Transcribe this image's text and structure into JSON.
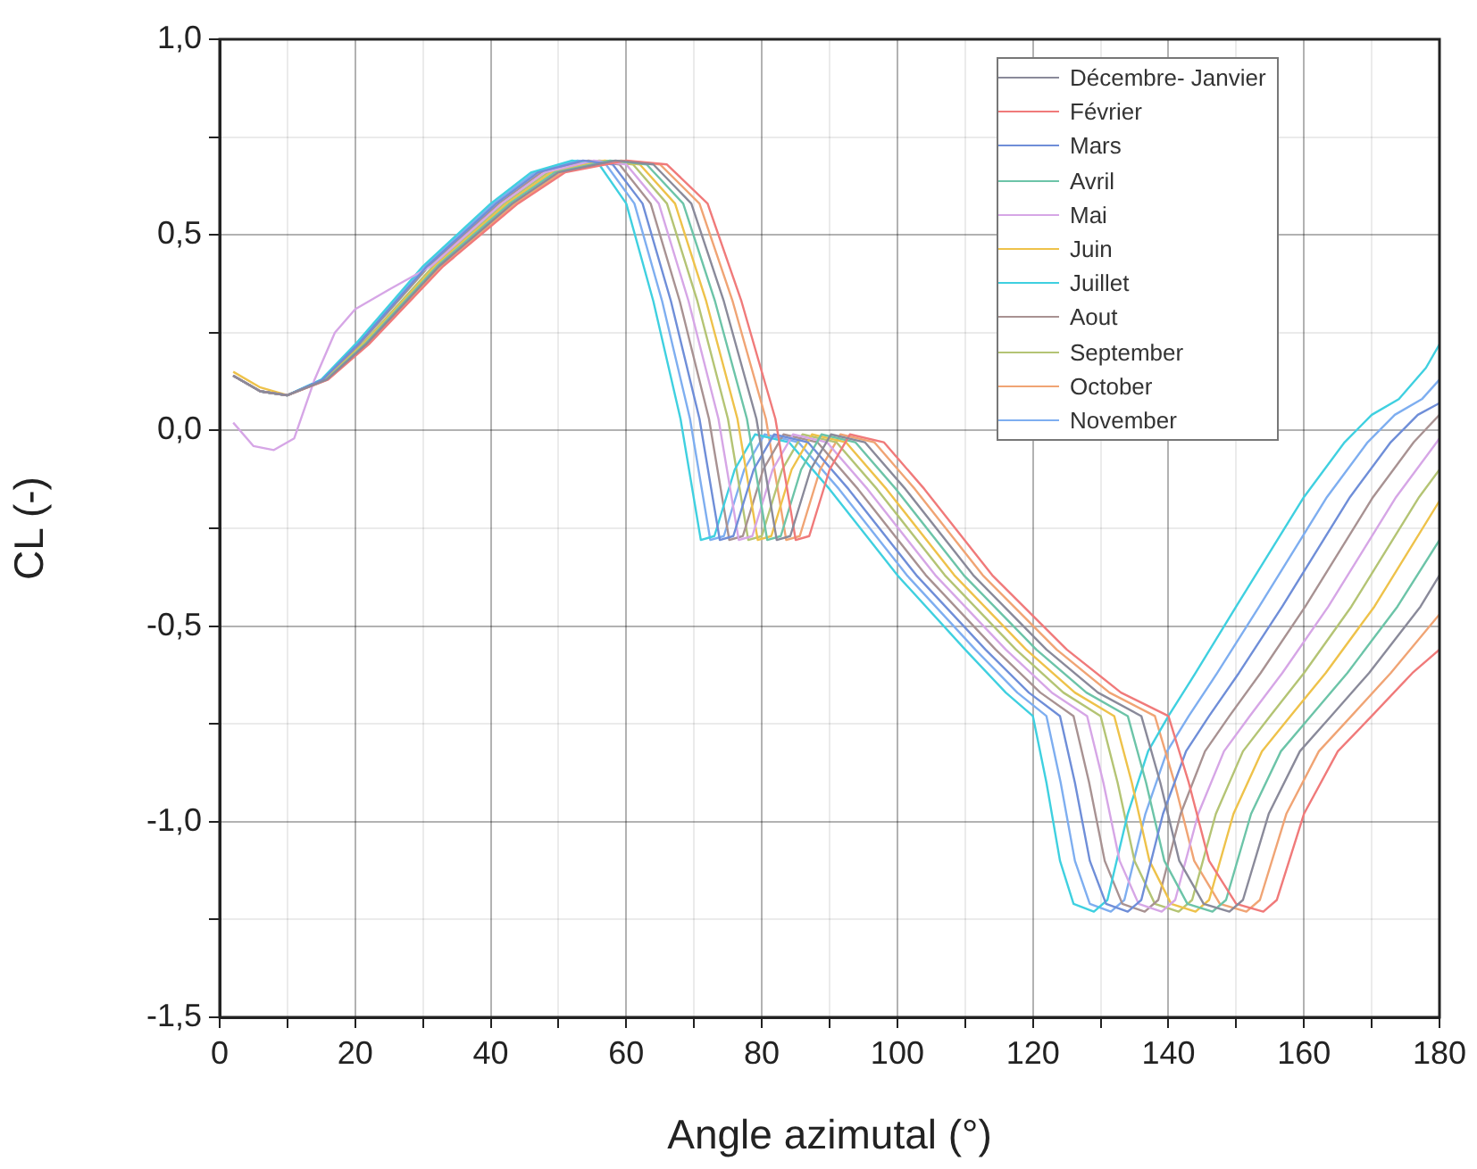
{
  "chart_data": {
    "type": "line",
    "xlabel": "Angle azimutal (°)",
    "ylabel": "CL (-)",
    "xlim": [
      0,
      180
    ],
    "xticks": [
      0,
      {
        "value": 10,
        "label": null
      },
      20,
      {
        "value": 30,
        "label": null
      },
      40,
      {
        "value": 50,
        "label": null
      },
      60,
      {
        "value": 70,
        "label": null
      },
      80,
      {
        "value": 90,
        "label": null
      },
      100,
      {
        "value": 110,
        "label": null
      },
      120,
      {
        "value": 130,
        "label": null
      },
      140,
      {
        "value": 150,
        "label": null
      },
      160,
      {
        "value": 170,
        "label": null
      },
      180
    ],
    "ylim": [
      -1.5,
      1
    ],
    "yticks": [
      {
        "value": -1.5,
        "label": "-1,5"
      },
      {
        "value": -1.25,
        "label": null
      },
      {
        "value": -1,
        "label": "-1,0"
      },
      {
        "value": -0.75,
        "label": null
      },
      {
        "value": -0.5,
        "label": "-0,5"
      },
      {
        "value": -0.25,
        "label": null
      },
      {
        "value": 0,
        "label": "0,0"
      },
      {
        "value": 0.25,
        "label": null
      },
      {
        "value": 0.5,
        "label": "0,5"
      },
      {
        "value": 0.75,
        "label": null
      },
      {
        "value": 1,
        "label": "1,0"
      }
    ],
    "grid": true,
    "legend": "top right",
    "marker": "none",
    "line_style": "solid",
    "series": [
      {
        "name": "Décembre- Janvier",
        "color": "#8a8a9a",
        "x": [
          2,
          6,
          10,
          15.8,
          21.6,
          32.4,
          43.2,
          50,
          58.4,
          64,
          69.6,
          74.4,
          79.2,
          82.2,
          84.2,
          87.2,
          90.2,
          95.2,
          101.2,
          111.2,
          122,
          129.6,
          136,
          138.8,
          141.6,
          145.2,
          149,
          151,
          154.8,
          159.4,
          164,
          169.6,
          177.2,
          180
        ],
        "values": [
          0.14,
          0.1,
          0.09,
          0.13,
          0.22,
          0.42,
          0.58,
          0.66,
          0.69,
          0.68,
          0.58,
          0.33,
          0.03,
          -0.28,
          -0.27,
          -0.1,
          -0.01,
          -0.03,
          -0.15,
          -0.37,
          -0.56,
          -0.67,
          -0.73,
          -0.9,
          -1.1,
          -1.21,
          -1.23,
          -1.2,
          -0.98,
          -0.82,
          -0.73,
          -0.62,
          -0.45,
          -0.37
        ]
      },
      {
        "name": "Février",
        "color": "#f07a7a",
        "x": [
          2,
          6,
          10,
          16,
          22,
          33,
          44,
          51,
          60,
          66,
          72,
          77,
          82,
          85,
          87,
          90,
          93,
          98,
          104,
          114,
          125,
          133,
          140,
          143,
          146,
          150,
          154,
          156,
          160,
          165,
          170,
          176,
          180
        ],
        "values": [
          0.14,
          0.1,
          0.09,
          0.13,
          0.22,
          0.42,
          0.58,
          0.66,
          0.69,
          0.68,
          0.58,
          0.33,
          0.03,
          -0.28,
          -0.27,
          -0.1,
          -0.01,
          -0.03,
          -0.15,
          -0.37,
          -0.56,
          -0.67,
          -0.73,
          -0.9,
          -1.1,
          -1.21,
          -1.23,
          -1.2,
          -0.98,
          -0.82,
          -0.73,
          -0.62,
          -0.56
        ]
      },
      {
        "name": "Mars",
        "color": "#6f8ed8",
        "x": [
          2,
          6,
          10,
          15.2,
          20.4,
          30.6,
          40.8,
          47,
          53.6,
          58,
          62.4,
          66.6,
          70.8,
          73.8,
          75.8,
          78.8,
          81.8,
          86.8,
          92.8,
          102.8,
          113,
          119.4,
          124,
          126.2,
          128.4,
          130.8,
          134,
          136,
          139.2,
          142.6,
          146,
          150.4,
          156.8,
          166.8,
          172.8,
          176.8,
          180
        ],
        "values": [
          0.14,
          0.1,
          0.09,
          0.13,
          0.22,
          0.42,
          0.58,
          0.66,
          0.69,
          0.68,
          0.58,
          0.33,
          0.03,
          -0.28,
          -0.27,
          -0.1,
          -0.01,
          -0.03,
          -0.15,
          -0.37,
          -0.56,
          -0.67,
          -0.73,
          -0.9,
          -1.1,
          -1.21,
          -1.23,
          -1.2,
          -0.98,
          -0.82,
          -0.73,
          -0.62,
          -0.45,
          -0.17,
          -0.03,
          0.04,
          0.07
        ]
      },
      {
        "name": "Avril",
        "color": "#6cc4a8",
        "x": [
          2,
          6,
          10,
          15.7,
          21.4,
          32.1,
          42.8,
          49.5,
          57.6,
          63,
          68.4,
          73.1,
          77.8,
          80.8,
          82.8,
          85.8,
          88.8,
          93.8,
          99.8,
          109.8,
          120.5,
          127.9,
          134,
          136.7,
          139.4,
          142.8,
          146.5,
          148.5,
          152.2,
          156.6,
          161,
          166.4,
          173.8,
          180
        ],
        "values": [
          0.14,
          0.1,
          0.09,
          0.13,
          0.22,
          0.42,
          0.58,
          0.66,
          0.69,
          0.68,
          0.58,
          0.33,
          0.03,
          -0.28,
          -0.27,
          -0.1,
          -0.01,
          -0.03,
          -0.15,
          -0.37,
          -0.56,
          -0.67,
          -0.73,
          -0.9,
          -1.1,
          -1.21,
          -1.23,
          -1.2,
          -0.98,
          -0.82,
          -0.73,
          -0.62,
          -0.45,
          -0.28
        ]
      },
      {
        "name": "Mai",
        "color": "#d6a6e6",
        "x": [
          2,
          5,
          8,
          11,
          14,
          17,
          20,
          25,
          31.2,
          41.6,
          48,
          55.2,
          60,
          64.8,
          69.2,
          73.6,
          76.6,
          78.6,
          81.6,
          84.6,
          89.6,
          95.6,
          105.6,
          116,
          122.8,
          128,
          130.4,
          132.8,
          135.6,
          139,
          141,
          144.4,
          148.2,
          152,
          156.8,
          163.6,
          173.6,
          179.6,
          180
        ],
        "values": [
          0.02,
          -0.04,
          -0.05,
          -0.02,
          0.13,
          0.25,
          0.31,
          0.36,
          0.42,
          0.58,
          0.66,
          0.69,
          0.68,
          0.58,
          0.33,
          0.03,
          -0.28,
          -0.27,
          -0.1,
          -0.01,
          -0.03,
          -0.15,
          -0.37,
          -0.56,
          -0.67,
          -0.73,
          -0.9,
          -1.1,
          -1.21,
          -1.23,
          -1.2,
          -0.98,
          -0.82,
          -0.73,
          -0.62,
          -0.45,
          -0.17,
          -0.03,
          -0.02
        ]
      },
      {
        "name": "Juin",
        "color": "#eec24a",
        "x": [
          2,
          6,
          10,
          15.6,
          21.2,
          31.8,
          42.4,
          49,
          56.8,
          62,
          67.2,
          71.8,
          76.4,
          79.4,
          81.4,
          84.4,
          87.4,
          92.4,
          98.4,
          108.4,
          119,
          126.2,
          132,
          134.6,
          137.2,
          140.4,
          144,
          146,
          149.6,
          153.8,
          158,
          163.2,
          170.4,
          180
        ],
        "values": [
          0.15,
          0.11,
          0.09,
          0.13,
          0.22,
          0.42,
          0.58,
          0.66,
          0.69,
          0.68,
          0.58,
          0.33,
          0.03,
          -0.28,
          -0.27,
          -0.1,
          -0.01,
          -0.03,
          -0.15,
          -0.37,
          -0.56,
          -0.67,
          -0.73,
          -0.9,
          -1.1,
          -1.21,
          -1.23,
          -1.2,
          -0.98,
          -0.82,
          -0.73,
          -0.62,
          -0.45,
          -0.18
        ]
      },
      {
        "name": "Juillet",
        "color": "#3fd0e0",
        "x": [
          2,
          6,
          10,
          15,
          20,
          30,
          40,
          46,
          52,
          56,
          60,
          64,
          68,
          71,
          73,
          76,
          79,
          84,
          90,
          100,
          110,
          116,
          120,
          122,
          124,
          126,
          129,
          131,
          134,
          137,
          140,
          144,
          150,
          160,
          166,
          170,
          174,
          178,
          180
        ],
        "values": [
          0.14,
          0.1,
          0.09,
          0.13,
          0.22,
          0.42,
          0.58,
          0.66,
          0.69,
          0.68,
          0.58,
          0.33,
          0.03,
          -0.28,
          -0.27,
          -0.1,
          -0.01,
          -0.03,
          -0.15,
          -0.37,
          -0.56,
          -0.67,
          -0.73,
          -0.9,
          -1.1,
          -1.21,
          -1.23,
          -1.2,
          -0.98,
          -0.82,
          -0.73,
          -0.62,
          -0.45,
          -0.17,
          -0.03,
          0.04,
          0.08,
          0.16,
          0.22
        ]
      },
      {
        "name": "Aout",
        "color": "#a89292",
        "x": [
          2,
          6,
          10,
          15.3,
          20.6,
          30.9,
          41.2,
          47.5,
          54.4,
          59,
          63.6,
          67.9,
          72.2,
          75.2,
          77.2,
          80.2,
          83.2,
          88.2,
          94.2,
          104.2,
          114.5,
          121.1,
          126,
          128.3,
          130.6,
          133.2,
          136.5,
          138.5,
          141.8,
          145.4,
          149,
          153.6,
          160.2,
          170.2,
          176.2,
          180
        ],
        "values": [
          0.14,
          0.1,
          0.09,
          0.13,
          0.22,
          0.42,
          0.58,
          0.66,
          0.69,
          0.68,
          0.58,
          0.33,
          0.03,
          -0.28,
          -0.27,
          -0.1,
          -0.01,
          -0.03,
          -0.15,
          -0.37,
          -0.56,
          -0.67,
          -0.73,
          -0.9,
          -1.1,
          -1.21,
          -1.23,
          -1.2,
          -0.98,
          -0.82,
          -0.73,
          -0.62,
          -0.45,
          -0.17,
          -0.03,
          0.04
        ]
      },
      {
        "name": "September",
        "color": "#b4c474",
        "x": [
          2,
          6,
          10,
          15.5,
          21,
          31.5,
          42,
          48.5,
          56,
          61,
          66,
          70.5,
          75,
          78,
          80,
          83,
          86,
          91,
          97,
          107,
          117.5,
          124.5,
          130,
          132.5,
          135,
          138,
          141.5,
          143.5,
          147,
          151,
          155,
          160,
          167,
          177,
          180
        ],
        "values": [
          0.14,
          0.1,
          0.09,
          0.13,
          0.22,
          0.42,
          0.58,
          0.66,
          0.69,
          0.68,
          0.58,
          0.33,
          0.03,
          -0.28,
          -0.27,
          -0.1,
          -0.01,
          -0.03,
          -0.15,
          -0.37,
          -0.56,
          -0.67,
          -0.73,
          -0.9,
          -1.1,
          -1.21,
          -1.23,
          -1.2,
          -0.98,
          -0.82,
          -0.73,
          -0.62,
          -0.45,
          -0.17,
          -0.1
        ]
      },
      {
        "name": "October",
        "color": "#f0a474",
        "x": [
          2,
          6,
          10,
          15.9,
          21.8,
          32.7,
          43.6,
          50.5,
          59.2,
          65,
          70.8,
          75.7,
          80.6,
          83.6,
          85.6,
          88.6,
          91.6,
          96.6,
          102.6,
          112.6,
          123.5,
          131.3,
          138,
          140.9,
          143.8,
          147.6,
          151.5,
          153.5,
          157.4,
          162.2,
          167,
          172.8,
          180
        ],
        "values": [
          0.14,
          0.1,
          0.09,
          0.13,
          0.22,
          0.42,
          0.58,
          0.66,
          0.69,
          0.68,
          0.58,
          0.33,
          0.03,
          -0.28,
          -0.27,
          -0.1,
          -0.01,
          -0.03,
          -0.15,
          -0.37,
          -0.56,
          -0.67,
          -0.73,
          -0.9,
          -1.1,
          -1.21,
          -1.23,
          -1.2,
          -0.98,
          -0.82,
          -0.73,
          -0.62,
          -0.47
        ]
      },
      {
        "name": "November",
        "color": "#7eaef0",
        "x": [
          2,
          6,
          10,
          15.1,
          20.2,
          30.3,
          40.4,
          46.5,
          52.8,
          57,
          61.2,
          65.3,
          69.4,
          72.4,
          74.4,
          77.4,
          80.4,
          85.4,
          91.4,
          101.4,
          111.5,
          117.7,
          122,
          124.1,
          126.2,
          128.4,
          131.5,
          133.5,
          136.6,
          139.8,
          143,
          147.2,
          153.4,
          163.4,
          169.4,
          173.4,
          177.4,
          180
        ],
        "values": [
          0.14,
          0.1,
          0.09,
          0.13,
          0.22,
          0.42,
          0.58,
          0.66,
          0.69,
          0.68,
          0.58,
          0.33,
          0.03,
          -0.28,
          -0.27,
          -0.1,
          -0.01,
          -0.03,
          -0.15,
          -0.37,
          -0.56,
          -0.67,
          -0.73,
          -0.9,
          -1.1,
          -1.21,
          -1.23,
          -1.2,
          -0.98,
          -0.82,
          -0.73,
          -0.62,
          -0.45,
          -0.17,
          -0.03,
          0.04,
          0.08,
          0.13
        ]
      }
    ]
  }
}
